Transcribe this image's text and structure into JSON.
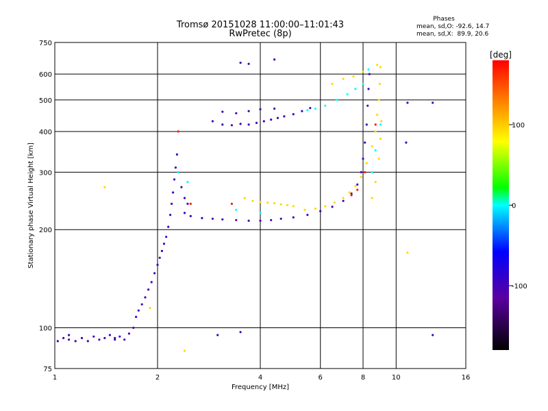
{
  "chart_data": {
    "type": "scatter",
    "title": "Tromsø 20151028 11:00:00–11:01:43",
    "subtitle": "RwPretec (8p)",
    "xlabel": "Frequency [MHz]",
    "ylabel": "Stationary phase Virtual Height [km]",
    "x_scale": "log",
    "y_scale": "log",
    "xlim": [
      1,
      16
    ],
    "ylim": [
      75,
      750
    ],
    "x_ticks": [
      1,
      2,
      4,
      6,
      8,
      10,
      16
    ],
    "y_ticks": [
      75,
      100,
      200,
      300,
      400,
      500,
      600,
      750
    ],
    "grid": true,
    "phase_stats": {
      "header": "Phases",
      "line1": "mean, sd,O: -92.6, 14.7",
      "line2": "mean, sd,X:  89.9, 20.6"
    },
    "colorbar": {
      "label": "[deg]",
      "range": [
        -180,
        180
      ],
      "ticks": [
        100,
        0,
        -100
      ]
    },
    "series": [
      {
        "phase": -100,
        "points": [
          [
            1.02,
            91
          ],
          [
            1.06,
            93
          ],
          [
            1.1,
            92
          ],
          [
            1.15,
            91
          ],
          [
            1.2,
            93
          ],
          [
            1.25,
            91
          ],
          [
            1.3,
            94
          ],
          [
            1.35,
            92
          ],
          [
            1.4,
            93
          ],
          [
            1.45,
            95
          ],
          [
            1.5,
            93
          ],
          [
            1.55,
            94
          ],
          [
            1.6,
            92
          ],
          [
            1.65,
            96
          ],
          [
            1.7,
            100
          ],
          [
            1.73,
            108
          ],
          [
            1.76,
            113
          ],
          [
            1.8,
            118
          ],
          [
            1.84,
            124
          ],
          [
            1.88,
            131
          ],
          [
            1.92,
            138
          ],
          [
            1.96,
            147
          ],
          [
            2.0,
            156
          ],
          [
            2.03,
            164
          ],
          [
            2.06,
            172
          ],
          [
            2.09,
            181
          ],
          [
            2.12,
            190
          ],
          [
            2.15,
            204
          ],
          [
            2.18,
            222
          ],
          [
            2.2,
            240
          ],
          [
            2.22,
            260
          ],
          [
            2.24,
            285
          ],
          [
            2.26,
            310
          ],
          [
            2.28,
            340
          ],
          [
            2.3,
            300
          ],
          [
            2.35,
            270
          ],
          [
            2.4,
            250
          ],
          [
            2.45,
            240
          ],
          [
            2.4,
            225
          ],
          [
            2.5,
            220
          ],
          [
            2.7,
            217
          ],
          [
            2.9,
            216
          ],
          [
            3.1,
            215
          ],
          [
            3.4,
            214
          ],
          [
            3.7,
            213
          ],
          [
            4.0,
            213
          ],
          [
            4.3,
            214
          ],
          [
            4.6,
            216
          ],
          [
            5.0,
            218
          ],
          [
            5.5,
            222
          ],
          [
            6.0,
            228
          ],
          [
            6.5,
            235
          ],
          [
            7.0,
            245
          ],
          [
            7.4,
            258
          ],
          [
            7.7,
            275
          ],
          [
            7.9,
            300
          ],
          [
            8.0,
            330
          ],
          [
            8.1,
            370
          ],
          [
            8.2,
            420
          ],
          [
            8.25,
            480
          ],
          [
            8.3,
            540
          ],
          [
            8.35,
            600
          ],
          [
            2.9,
            430
          ],
          [
            3.1,
            420
          ],
          [
            3.3,
            418
          ],
          [
            3.5,
            422
          ],
          [
            3.7,
            420
          ],
          [
            3.9,
            425
          ],
          [
            4.1,
            430
          ],
          [
            4.3,
            435
          ],
          [
            4.5,
            440
          ],
          [
            4.7,
            445
          ],
          [
            5.0,
            452
          ],
          [
            5.3,
            462
          ],
          [
            5.6,
            472
          ],
          [
            3.1,
            460
          ],
          [
            3.4,
            455
          ],
          [
            3.7,
            462
          ],
          [
            4.0,
            468
          ],
          [
            4.4,
            470
          ],
          [
            3.5,
            650
          ],
          [
            3.7,
            645
          ],
          [
            4.4,
            665
          ],
          [
            1.1,
            95
          ],
          [
            1.5,
            92
          ],
          [
            3.0,
            95
          ],
          [
            3.5,
            97
          ],
          [
            10.8,
            490
          ],
          [
            12.8,
            95
          ],
          [
            12.8,
            490
          ],
          [
            10.7,
            370
          ]
        ]
      },
      {
        "phase": 95,
        "points": [
          [
            3.6,
            250
          ],
          [
            3.8,
            245
          ],
          [
            4.0,
            243
          ],
          [
            4.2,
            242
          ],
          [
            4.4,
            241
          ],
          [
            4.6,
            239
          ],
          [
            4.8,
            238
          ],
          [
            5.0,
            236
          ],
          [
            5.4,
            230
          ],
          [
            5.8,
            232
          ],
          [
            6.2,
            236
          ],
          [
            6.6,
            242
          ],
          [
            7.0,
            250
          ],
          [
            7.3,
            260
          ],
          [
            7.6,
            272
          ],
          [
            7.9,
            290
          ],
          [
            8.2,
            320
          ],
          [
            8.5,
            360
          ],
          [
            8.7,
            400
          ],
          [
            8.8,
            450
          ],
          [
            8.9,
            500
          ],
          [
            8.95,
            560
          ],
          [
            8.5,
            250
          ],
          [
            8.7,
            280
          ],
          [
            8.9,
            330
          ],
          [
            9.0,
            380
          ],
          [
            9.05,
            430
          ],
          [
            6.5,
            560
          ],
          [
            7.0,
            580
          ],
          [
            7.5,
            590
          ],
          [
            8.0,
            610
          ],
          [
            8.8,
            640
          ],
          [
            9.0,
            630
          ],
          [
            1.4,
            270
          ],
          [
            1.9,
            115
          ],
          [
            2.4,
            85
          ],
          [
            10.8,
            170
          ]
        ]
      },
      {
        "phase": 0,
        "points": [
          [
            5.5,
            465
          ],
          [
            5.8,
            470
          ],
          [
            6.2,
            480
          ],
          [
            6.7,
            500
          ],
          [
            7.2,
            520
          ],
          [
            7.6,
            540
          ],
          [
            8.0,
            560
          ],
          [
            8.3,
            620
          ],
          [
            8.5,
            300
          ],
          [
            8.7,
            350
          ],
          [
            9.0,
            420
          ],
          [
            2.3,
            300
          ],
          [
            2.45,
            280
          ],
          [
            3.4,
            230
          ],
          [
            4.0,
            225
          ]
        ]
      },
      {
        "phase": 170,
        "points": [
          [
            7.4,
            255
          ],
          [
            7.7,
            265
          ],
          [
            8.1,
            300
          ],
          [
            8.7,
            420
          ],
          [
            3.3,
            240
          ],
          [
            2.5,
            240
          ],
          [
            2.3,
            400
          ]
        ]
      }
    ]
  }
}
